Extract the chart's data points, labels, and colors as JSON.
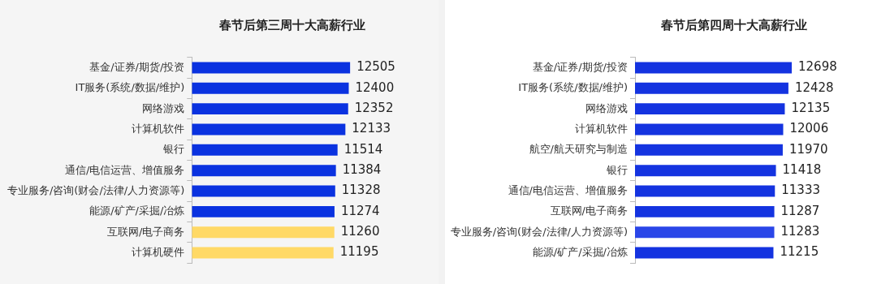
{
  "chart_data": [
    {
      "type": "bar",
      "orientation": "horizontal",
      "title": "春节后第三周十大高薪行业",
      "categories": [
        "基金/证券/期货/投资",
        "IT服务(系统/数据/维护)",
        "网络游戏",
        "计算机软件",
        "银行",
        "通信/电信运营、增值服务",
        "专业服务/咨询(财会/法律/人力资源等)",
        "能源/矿产/采掘/冶炼",
        "互联网/电子商务",
        "计算机硬件"
      ],
      "values": [
        12505,
        12400,
        12352,
        12133,
        11514,
        11384,
        11328,
        11274,
        11260,
        11195
      ],
      "colors": [
        "#0a32e0",
        "#0a32e0",
        "#0a32e0",
        "#0a32e0",
        "#0a32e0",
        "#0a32e0",
        "#0a32e0",
        "#0a32e0",
        "#ffd966",
        "#ffd966"
      ],
      "tick_labels": "y",
      "data_labels": true
    },
    {
      "type": "bar",
      "orientation": "horizontal",
      "title": "春节后第四周十大高薪行业",
      "categories": [
        "基金/证券/期货/投资",
        "IT服务(系统/数据/维护)",
        "网络游戏",
        "计算机软件",
        "航空/航天研究与制造",
        "银行",
        "通信/电信运营、增值服务",
        "互联网/电子商务",
        "专业服务/咨询(财会/法律/人力资源等)",
        "能源/矿产/采掘/冶炼"
      ],
      "values": [
        12698,
        12428,
        12135,
        12006,
        11970,
        11418,
        11333,
        11287,
        11283,
        11215
      ],
      "colors": [
        "#1433e0",
        "#1433e0",
        "#1433e0",
        "#1433e0",
        "#1433e0",
        "#1433e0",
        "#1433e0",
        "#1433e0",
        "#2a46e8",
        "#1433e0"
      ],
      "tick_labels": "y",
      "data_labels": true
    }
  ]
}
